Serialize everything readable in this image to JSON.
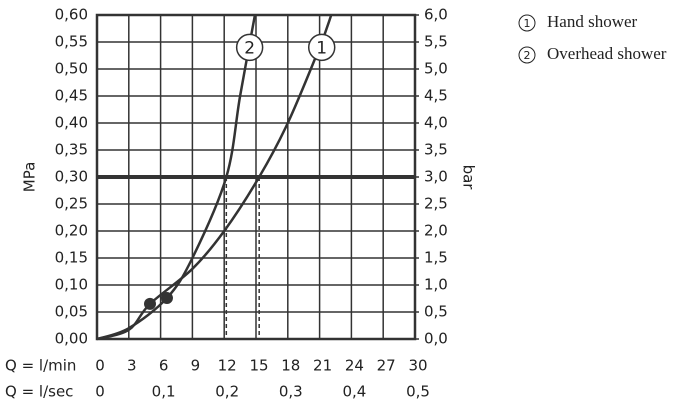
{
  "chart_data": {
    "type": "line",
    "x_label": "Q = l/min",
    "x2_label": "Q = l/sec",
    "y_label": "MPa",
    "y2_label": "bar",
    "xlim": [
      0,
      30
    ],
    "xticks": [
      0,
      3,
      6,
      9,
      12,
      15,
      18,
      21,
      24,
      27,
      30
    ],
    "x2lim": [
      0,
      0.5
    ],
    "x2ticks": [
      0,
      {
        "value": 0.1,
        "label": "0,1"
      },
      {
        "value": 0.2,
        "label": "0,2"
      },
      {
        "value": 0.3,
        "label": "0,3"
      },
      {
        "value": 0.4,
        "label": "0,4"
      },
      {
        "value": 0.5,
        "label": "0,5"
      }
    ],
    "ylim": [
      0,
      0.6
    ],
    "yticks": [
      {
        "value": 0,
        "label": "0,00"
      },
      {
        "value": 0.05,
        "label": "0,05"
      },
      {
        "value": 0.1,
        "label": "0,10"
      },
      {
        "value": 0.15,
        "label": "0,15"
      },
      {
        "value": 0.2,
        "label": "0,20"
      },
      {
        "value": 0.25,
        "label": "0,25"
      },
      {
        "value": 0.3,
        "label": "0,30"
      },
      {
        "value": 0.35,
        "label": "0,35"
      },
      {
        "value": 0.4,
        "label": "0,40"
      },
      {
        "value": 0.45,
        "label": "0,45"
      },
      {
        "value": 0.5,
        "label": "0,50"
      },
      {
        "value": 0.55,
        "label": "0,55"
      },
      {
        "value": 0.6,
        "label": "0,60"
      }
    ],
    "y2lim": [
      0,
      6
    ],
    "y2ticks": [
      {
        "value": 0,
        "label": "0,0"
      },
      {
        "value": 0.5,
        "label": "0,5"
      },
      {
        "value": 1,
        "label": "1,0"
      },
      {
        "value": 1.5,
        "label": "1,5"
      },
      {
        "value": 2,
        "label": "2,0"
      },
      {
        "value": 2.5,
        "label": "2,5"
      },
      {
        "value": 3,
        "label": "3,0"
      },
      {
        "value": 3.5,
        "label": "3,5"
      },
      {
        "value": 4,
        "label": "4,0"
      },
      {
        "value": 4.5,
        "label": "4,5"
      },
      {
        "value": 5,
        "label": "5,0"
      },
      {
        "value": 5.5,
        "label": "5,5"
      },
      {
        "value": 6,
        "label": "6,0"
      }
    ],
    "grid": true,
    "threshold": 0.3,
    "series": [
      {
        "name": "Hand shower",
        "label": "1",
        "color": "#333333",
        "x": [
          0,
          3,
          5,
          9,
          12,
          15.3,
          18,
          21,
          22.1
        ],
        "values": [
          0,
          0.017,
          0.065,
          0.13,
          0.2,
          0.3,
          0.4,
          0.54,
          0.6
        ],
        "point": {
          "x": 5,
          "y": 0.065
        },
        "x_at_threshold": 15.3,
        "label_at": {
          "x": 21.2,
          "y": 0.54
        }
      },
      {
        "name": "Overhead shower",
        "label": "2",
        "color": "#333333",
        "x": [
          0,
          3,
          6.6,
          9,
          12.2,
          13.5,
          14.9
        ],
        "values": [
          0,
          0.02,
          0.076,
          0.15,
          0.3,
          0.45,
          0.6
        ],
        "point": {
          "x": 6.6,
          "y": 0.076
        },
        "x_at_threshold": 12.2,
        "label_at": {
          "x": 14.4,
          "y": 0.54
        }
      }
    ]
  }
}
